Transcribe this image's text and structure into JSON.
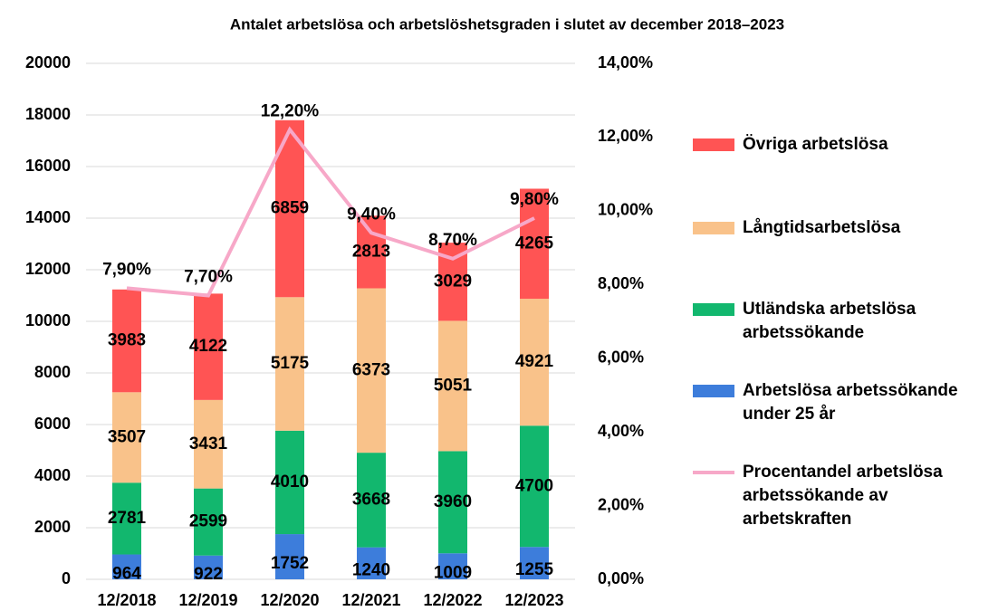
{
  "chart_data": {
    "type": "bar",
    "stacked": true,
    "title": "Antalet arbetslösa och arbetslöshetsgraden i slutet av december 2018–2023",
    "categories": [
      "12/2018",
      "12/2019",
      "12/2020",
      "12/2021",
      "12/2022",
      "12/2023"
    ],
    "series": [
      {
        "name": "Arbetslösa arbetssökande under 25 år",
        "color": "#3d7ddb",
        "values": [
          964,
          922,
          1752,
          1240,
          1009,
          1255
        ]
      },
      {
        "name": "Utländska arbetslösa arbetssökande",
        "color": "#12b76e",
        "values": [
          2781,
          2599,
          4010,
          3668,
          3960,
          4700
        ]
      },
      {
        "name": "Långtidsarbetslösa",
        "color": "#f9c28a",
        "values": [
          3507,
          3431,
          5175,
          6373,
          5051,
          4921
        ]
      },
      {
        "name": "Övriga arbetslösa",
        "color": "#ff5454",
        "values": [
          3983,
          4122,
          6859,
          2813,
          3029,
          4265
        ]
      },
      {
        "name": "Procentandel arbetslösa arbetssökande av arbetskraften",
        "color": "#f7a8c8",
        "type": "line",
        "axis": "y2",
        "values": [
          7.9,
          7.7,
          12.2,
          9.4,
          8.7,
          9.8
        ],
        "value_labels": [
          "7,90%",
          "7,70%",
          "12,20%",
          "9,40%",
          "8,70%",
          "9,80%"
        ]
      }
    ],
    "ylim": [
      0,
      20000
    ],
    "yticks": [
      0,
      2000,
      4000,
      6000,
      8000,
      10000,
      12000,
      14000,
      16000,
      18000,
      20000
    ],
    "y2lim": [
      0,
      14
    ],
    "y2ticks": [
      {
        "value": 0,
        "label": "0,00%"
      },
      {
        "value": 2,
        "label": "2,00%"
      },
      {
        "value": 4,
        "label": "4,00%"
      },
      {
        "value": 6,
        "label": "6,00%"
      },
      {
        "value": 8,
        "label": "8,00%"
      },
      {
        "value": 10,
        "label": "10,00%"
      },
      {
        "value": 12,
        "label": "12,00%"
      },
      {
        "value": 14,
        "label": "14,00%"
      }
    ],
    "grid": true,
    "legend": "right"
  }
}
